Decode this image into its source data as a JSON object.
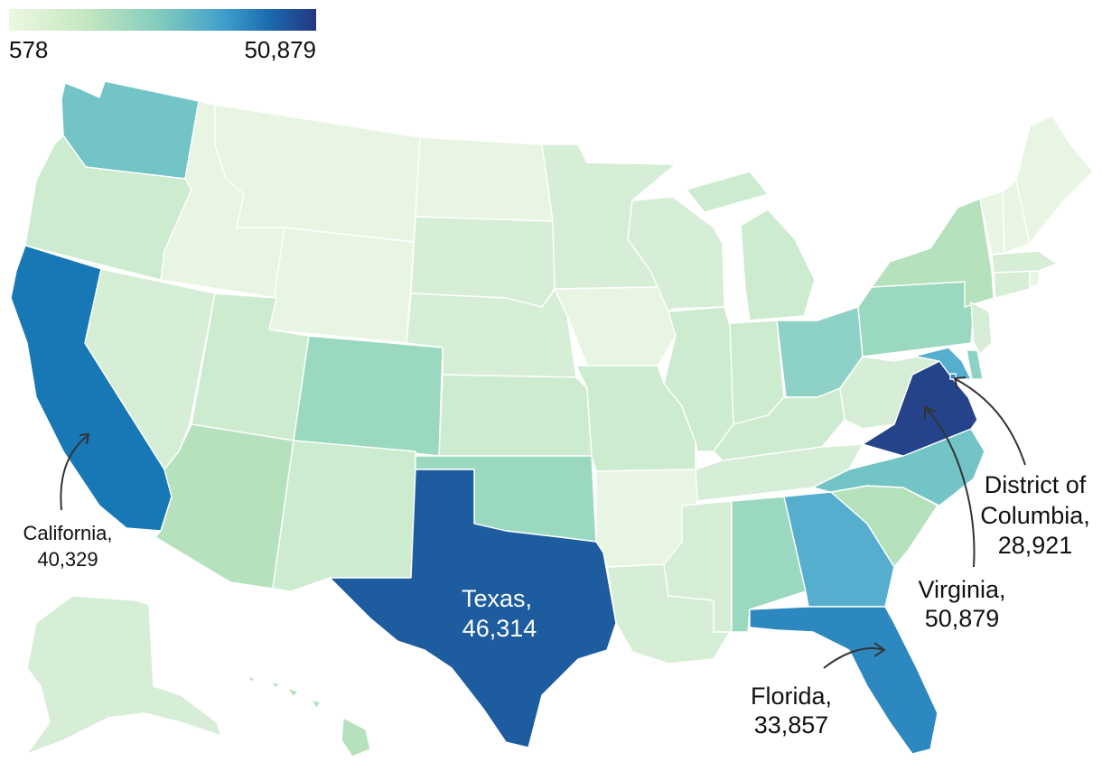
{
  "legend": {
    "min_label": "578",
    "max_label": "50,879",
    "colors": [
      "#edf8e2",
      "#c4e7c0",
      "#7fcabd",
      "#3f9fcc",
      "#1a6aae",
      "#25367f"
    ]
  },
  "palette": {
    "c1": "#e8f5e2",
    "c2": "#d7eed6",
    "c3": "#cdebcf",
    "c4": "#b5e1bd",
    "c5": "#9bd8c0",
    "c6": "#8ed1c6",
    "c7": "#72c4c6",
    "c8": "#55aecd",
    "c9": "#2d88c0",
    "c10": "#1878b6",
    "c11": "#1e5ca0",
    "c12": "#25438a"
  },
  "annotations": {
    "california": {
      "name": "California,",
      "value": "40,329"
    },
    "texas": {
      "name": "Texas,",
      "value": "46,314"
    },
    "florida": {
      "name": "Florida,",
      "value": "33,857"
    },
    "virginia": {
      "name": "Virginia,",
      "value": "50,879"
    },
    "dc": {
      "name_line1": "District of",
      "name_line2": "Columbia,",
      "value": "28,921"
    }
  }
}
